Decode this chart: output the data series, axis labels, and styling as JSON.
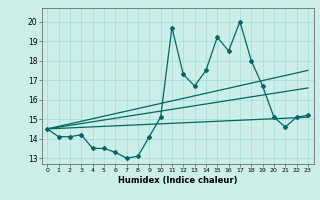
{
  "xlabel": "Humidex (Indice chaleur)",
  "background_color": "#cceee8",
  "grid_color": "#aadddd",
  "line_color": "#006666",
  "xlim": [
    -0.5,
    23.5
  ],
  "ylim": [
    12.7,
    20.7
  ],
  "yticks": [
    13,
    14,
    15,
    16,
    17,
    18,
    19,
    20
  ],
  "xticks": [
    0,
    1,
    2,
    3,
    4,
    5,
    6,
    7,
    8,
    9,
    10,
    11,
    12,
    13,
    14,
    15,
    16,
    17,
    18,
    19,
    20,
    21,
    22,
    23
  ],
  "series1_x": [
    0,
    1,
    2,
    3,
    4,
    5,
    6,
    7,
    8,
    9,
    10,
    11,
    12,
    13,
    14,
    15,
    16,
    17,
    18,
    19,
    20,
    21,
    22,
    23
  ],
  "series1_y": [
    14.5,
    14.1,
    14.1,
    14.2,
    13.5,
    13.5,
    13.3,
    13.0,
    13.1,
    14.1,
    15.1,
    19.7,
    17.3,
    16.7,
    17.5,
    19.2,
    18.5,
    20.0,
    18.0,
    16.7,
    15.1,
    14.6,
    15.1,
    15.2
  ],
  "trend1_x": [
    0,
    23
  ],
  "trend1_y": [
    14.5,
    17.5
  ],
  "trend2_x": [
    0,
    23
  ],
  "trend2_y": [
    14.5,
    16.6
  ],
  "trend3_x": [
    0,
    23
  ],
  "trend3_y": [
    14.5,
    15.1
  ]
}
